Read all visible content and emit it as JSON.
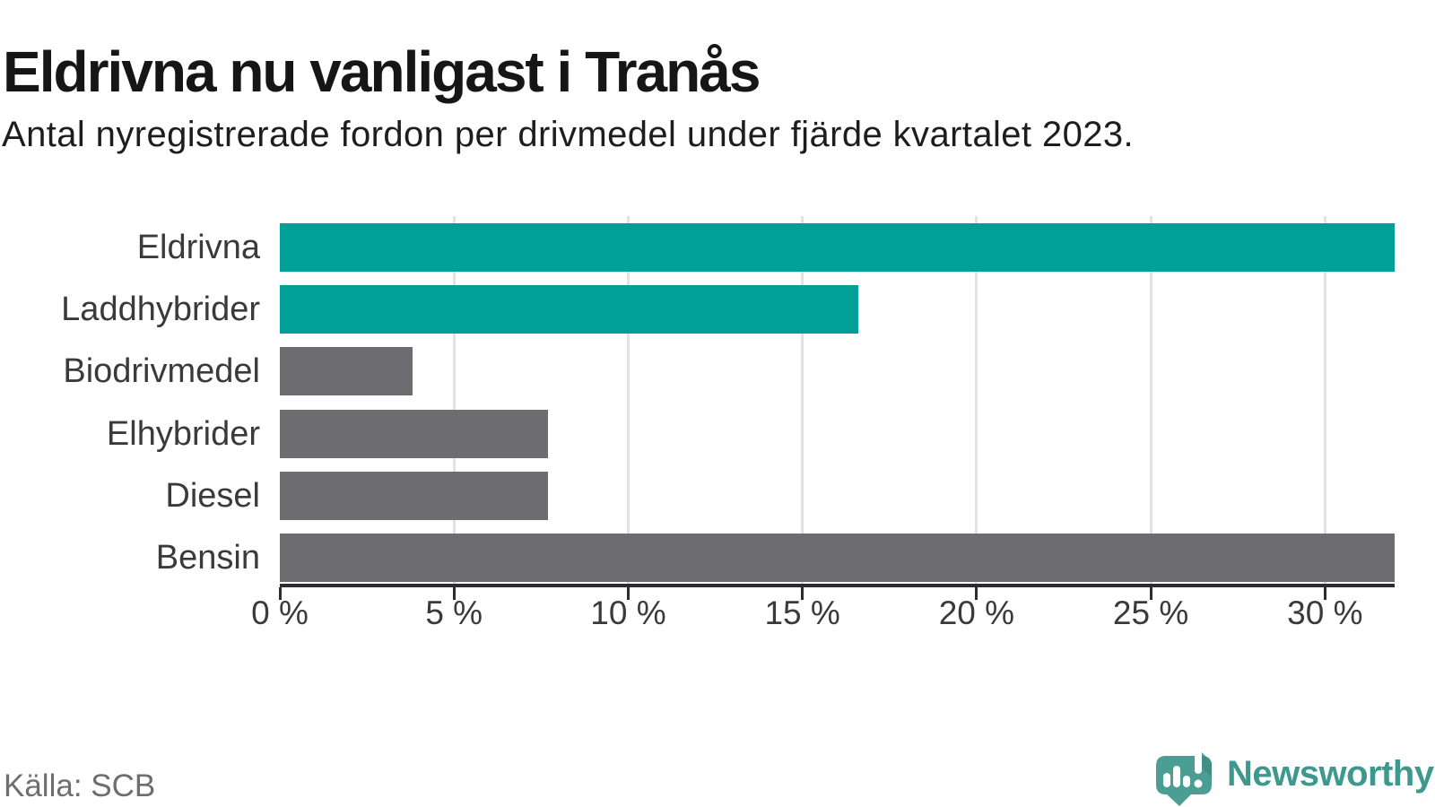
{
  "header": {
    "title": "Eldrivna nu vanligast i Tranås",
    "subtitle": "Antal nyregistrerade fordon per drivmedel under fjärde kvartalet 2023."
  },
  "chart_data": {
    "type": "bar",
    "orientation": "horizontal",
    "title": "Eldrivna nu vanligast i Tranås",
    "subtitle": "Antal nyregistrerade fordon per drivmedel under fjärde kvartalet 2023.",
    "categories": [
      "Eldrivna",
      "Laddhybrider",
      "Biodrivmedel",
      "Elhybrider",
      "Diesel",
      "Bensin"
    ],
    "values": [
      32.0,
      16.6,
      3.8,
      7.7,
      7.7,
      32.0
    ],
    "bar_colors": [
      "teal",
      "teal",
      "gray",
      "gray",
      "gray",
      "gray"
    ],
    "palette": {
      "teal": "#00a099",
      "gray": "#6c6c71"
    },
    "xlim": [
      0,
      32
    ],
    "x_tick_values": [
      0,
      5,
      10,
      15,
      20,
      25,
      30
    ],
    "x_tick_labels": [
      "0 %",
      "5 %",
      "10 %",
      "15 %",
      "20 %",
      "25 %",
      "30 %"
    ],
    "grid": "vertical-gridlines-on",
    "legend": "none",
    "xlabel": "",
    "ylabel": ""
  },
  "footer": {
    "source": "Källa: SCB",
    "brand": "Newsworthy",
    "brand_color": "#3d998e",
    "logo_color": "#4a9e94",
    "logo_shadow_color": "#3e8c82"
  }
}
